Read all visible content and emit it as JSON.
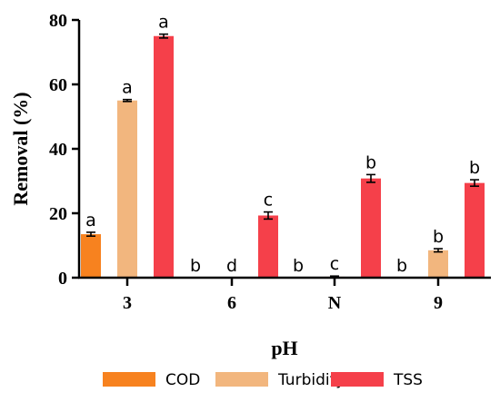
{
  "chart_data": {
    "type": "bar",
    "title": "",
    "xlabel": "pH",
    "ylabel": "Removal (%)",
    "ylim": [
      0,
      80
    ],
    "yticks": [
      0,
      20,
      40,
      60,
      80
    ],
    "categories": [
      "3",
      "6",
      "N",
      "9"
    ],
    "legend_position": "bottom",
    "grid": false,
    "series": [
      {
        "name": "COD",
        "color": "#f7821f",
        "values": [
          13.5,
          0,
          0,
          0
        ],
        "errors": [
          0.6,
          0,
          0,
          0
        ],
        "sig_letters": [
          "a",
          "b",
          "b",
          "b"
        ]
      },
      {
        "name": "Turbidity",
        "color": "#f2b67e",
        "values": [
          55,
          0,
          0.3,
          8.5
        ],
        "errors": [
          0.3,
          0,
          0.2,
          0.5
        ],
        "sig_letters": [
          "a",
          "d",
          "c",
          "b"
        ]
      },
      {
        "name": "TSS",
        "color": "#f5404a",
        "values": [
          75,
          19.3,
          30.8,
          29.4
        ],
        "errors": [
          0.6,
          1.1,
          1.2,
          1.0
        ],
        "sig_letters": [
          "a",
          "c",
          "b",
          "b"
        ]
      }
    ]
  }
}
